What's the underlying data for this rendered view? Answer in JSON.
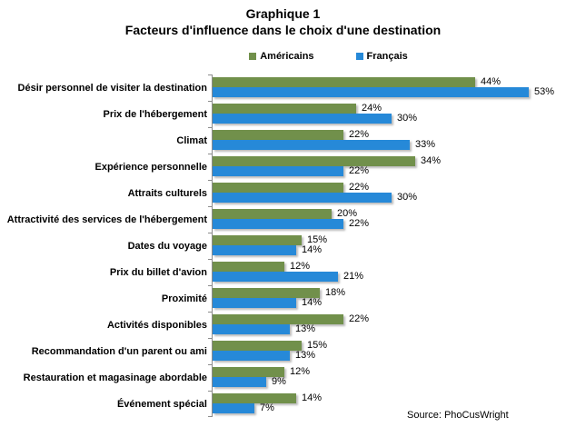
{
  "title": {
    "line1": "Graphique 1",
    "line2": "Facteurs d'influence dans le choix d'une destination"
  },
  "legend": [
    {
      "label": "Américains",
      "color": "#71904B"
    },
    {
      "label": "Français",
      "color": "#2689D8"
    }
  ],
  "source": "Source: PhoCusWright",
  "colors": {
    "americains": "#71904B",
    "francais": "#2689D8",
    "axis": "#8c8c8c",
    "background": "#ffffff",
    "text": "#000000"
  },
  "chart_data": {
    "type": "bar",
    "orientation": "horizontal",
    "title": "Graphique 1 — Facteurs d'influence dans le choix d'une destination",
    "legend_position": "top",
    "data_labels": true,
    "value_suffix": "%",
    "xlim": [
      0,
      57
    ],
    "grid": false,
    "categories": [
      "Désir personnel de visiter la destination",
      "Prix de l'hébergement",
      "Climat",
      "Expérience personnelle",
      "Attraits culturels",
      "Attractivité des services de l'hébergement",
      "Dates du voyage",
      "Prix du billet d'avion",
      "Proximité",
      "Activités disponibles",
      "Recommandation d'un parent ou ami",
      "Restauration et magasinage abordable",
      "Événement spécial"
    ],
    "series": [
      {
        "name": "Américains",
        "color": "#71904B",
        "values": [
          44,
          24,
          22,
          34,
          22,
          20,
          15,
          12,
          18,
          22,
          15,
          12,
          14
        ]
      },
      {
        "name": "Français",
        "color": "#2689D8",
        "values": [
          53,
          30,
          33,
          22,
          30,
          22,
          14,
          21,
          14,
          13,
          13,
          9,
          7
        ]
      }
    ]
  }
}
